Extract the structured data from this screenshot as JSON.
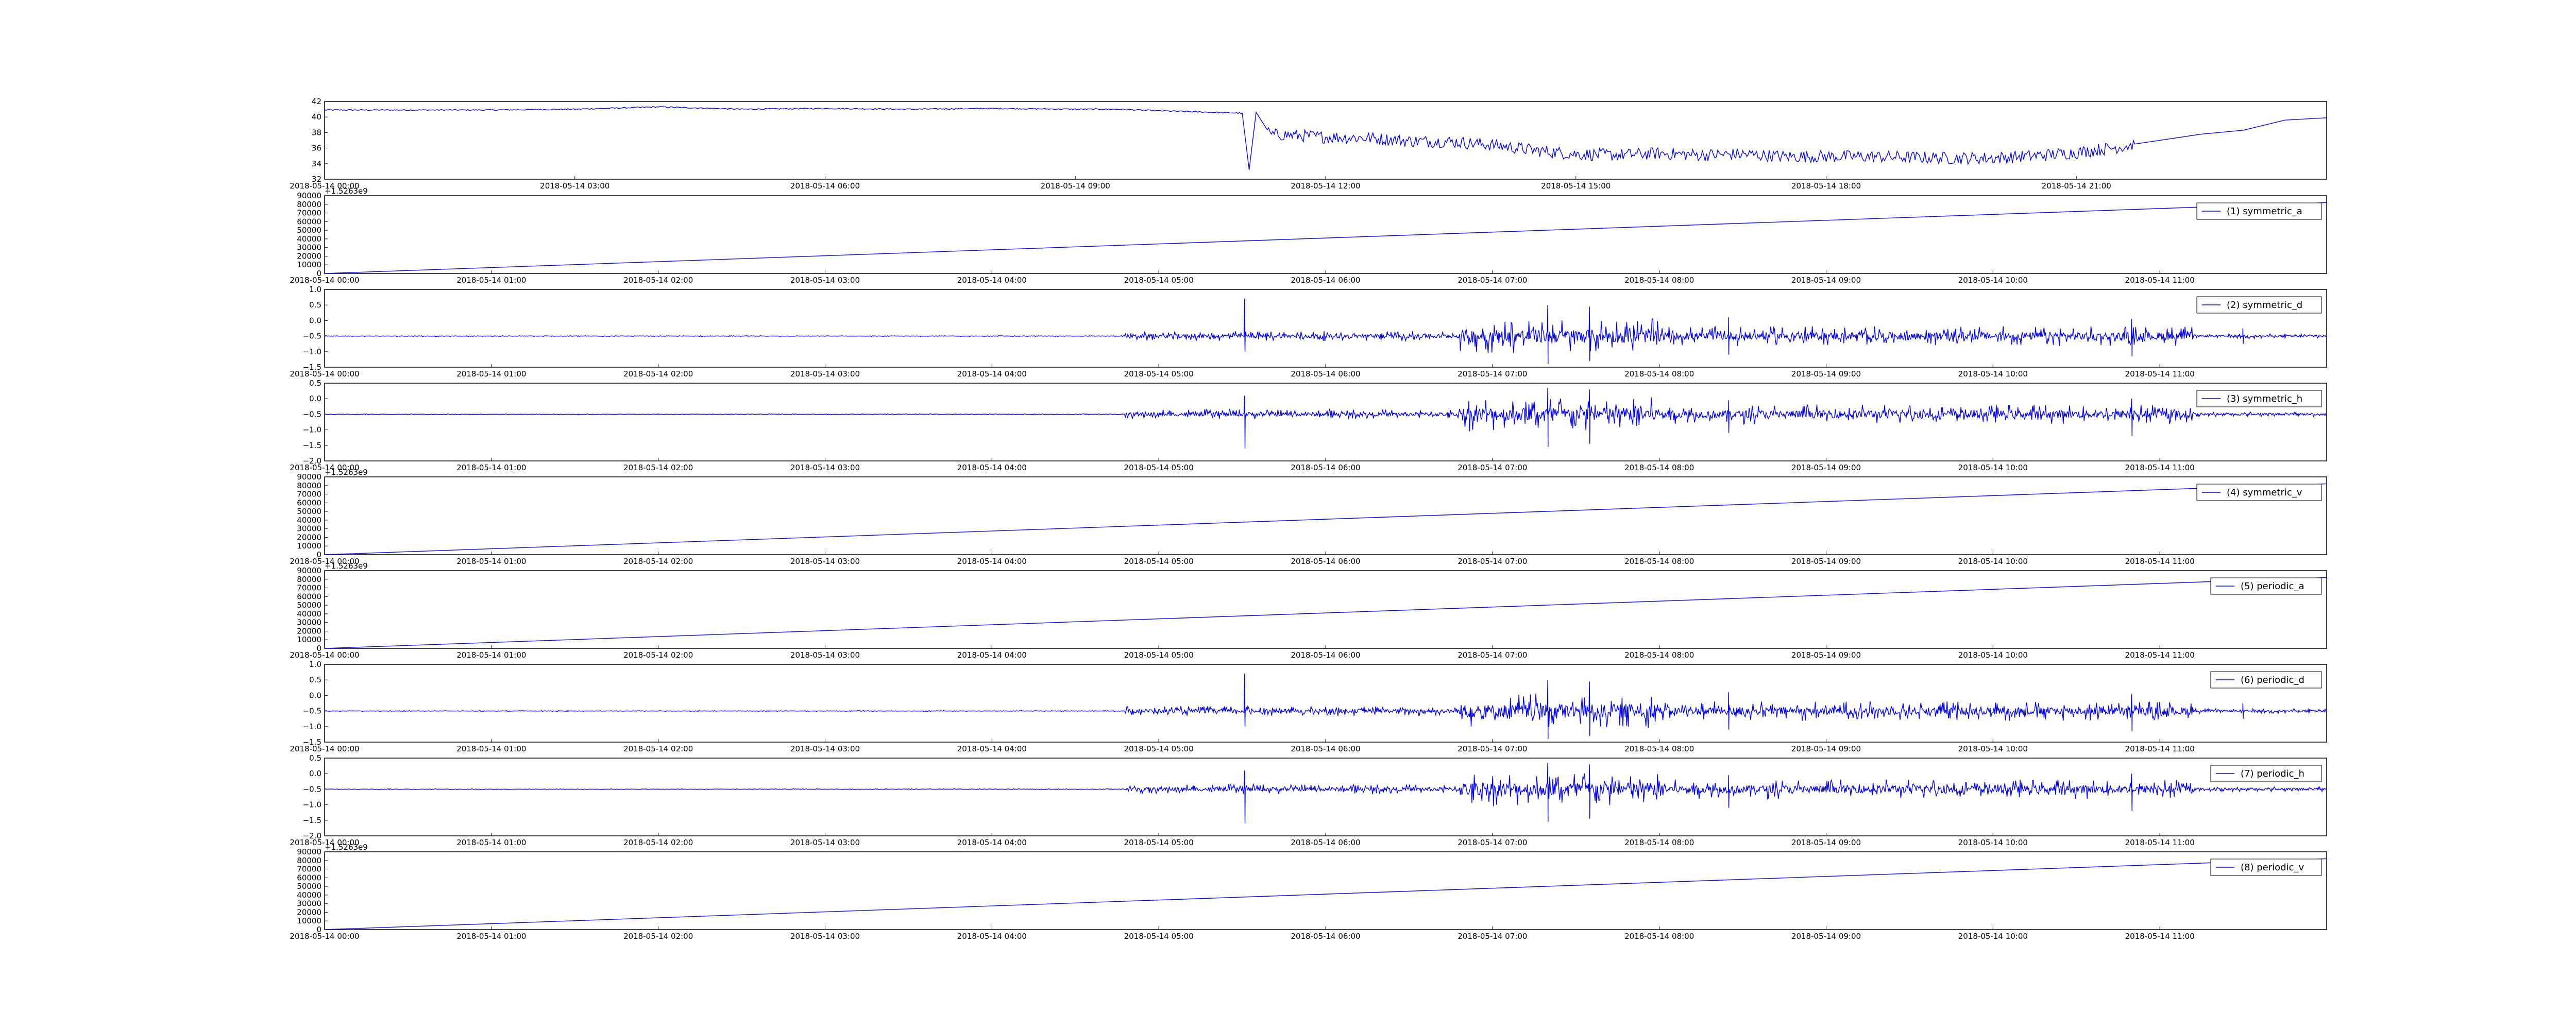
{
  "chart_data": [
    {
      "type": "line",
      "id": "top",
      "signal": "raw",
      "legend": null,
      "color": "#0000ff",
      "y_ticks": [
        "32",
        "34",
        "36",
        "38",
        "40",
        "42"
      ],
      "ylim": [
        32,
        42
      ],
      "y_offset_label": "",
      "x_axis": "day",
      "x_ticks": [
        "2018-05-14 00:00",
        "2018-05-14 03:00",
        "2018-05-14 06:00",
        "2018-05-14 09:00",
        "2018-05-14 12:00",
        "2018-05-14 15:00",
        "2018-05-14 18:00",
        "2018-05-14 21:00"
      ],
      "xlim": [
        "2018-05-14 00:00",
        "2018-05-15 00:00"
      ],
      "series": [
        {
          "x": [
            "00:00",
            "01:00",
            "02:00",
            "03:00",
            "04:00",
            "05:00",
            "06:00",
            "07:00",
            "08:00",
            "09:00",
            "09:30",
            "10:00",
            "10:40",
            "11:00",
            "11:05",
            "11:10",
            "11:20",
            "11:30",
            "12:00",
            "12:30",
            "13:00",
            "13:30",
            "14:00",
            "14:30",
            "15:00",
            "15:30",
            "16:00",
            "16:30",
            "17:00",
            "17:30",
            "18:00",
            "18:30",
            "19:00",
            "19:30",
            "20:00",
            "20:30",
            "21:00",
            "21:30",
            "22:00",
            "22:30",
            "23:00",
            "23:30",
            "24:00"
          ],
          "y": [
            40.9,
            40.9,
            40.9,
            41.0,
            41.3,
            41.0,
            41.1,
            41.0,
            41.1,
            41.0,
            41.0,
            40.8,
            40.6,
            40.5,
            33.2,
            40.6,
            37.8,
            37.8,
            37.5,
            37.4,
            37.0,
            36.9,
            36.5,
            35.8,
            35.3,
            35.2,
            35.4,
            35.2,
            35.3,
            35.0,
            35.0,
            35.0,
            34.9,
            34.8,
            34.8,
            35.1,
            35.5,
            36.2,
            37.0,
            37.8,
            38.3,
            39.6,
            39.9
          ]
        }
      ]
    },
    {
      "type": "line",
      "id": "p1",
      "signal": "ramp",
      "legend": "(1) symmetric_a",
      "color": "#0000ff",
      "y_ticks": [
        "0",
        "10000",
        "20000",
        "30000",
        "40000",
        "50000",
        "60000",
        "70000",
        "80000",
        "90000"
      ],
      "ylim": [
        0,
        90000
      ],
      "y_offset_label": "+1.5263e9",
      "x_axis": "half",
      "x_ticks": [
        "2018-05-14 00:00",
        "2018-05-14 01:00",
        "2018-05-14 02:00",
        "2018-05-14 03:00",
        "2018-05-14 04:00",
        "2018-05-14 05:00",
        "2018-05-14 06:00",
        "2018-05-14 07:00",
        "2018-05-14 08:00",
        "2018-05-14 09:00",
        "2018-05-14 10:00",
        "2018-05-14 11:00"
      ],
      "xlim": [
        "2018-05-14 00:00",
        "2018-05-14 12:00"
      ],
      "series": [
        {
          "x": [
            "00:00",
            "12:00"
          ],
          "y": [
            0,
            82000
          ]
        }
      ]
    },
    {
      "type": "line",
      "id": "p2",
      "signal": "noise-d",
      "legend": "(2) symmetric_d",
      "color": "#0000ff",
      "y_ticks": [
        "−1.5",
        "−1.0",
        "−0.5",
        "0.0",
        "0.5",
        "1.0"
      ],
      "ylim": [
        -1.5,
        1.0
      ],
      "y_offset_label": "",
      "x_axis": "half",
      "x_ticks": [
        "2018-05-14 00:00",
        "2018-05-14 01:00",
        "2018-05-14 02:00",
        "2018-05-14 03:00",
        "2018-05-14 04:00",
        "2018-05-14 05:00",
        "2018-05-14 06:00",
        "2018-05-14 07:00",
        "2018-05-14 08:00",
        "2018-05-14 09:00",
        "2018-05-14 10:00",
        "2018-05-14 11:00"
      ],
      "xlim": [
        "2018-05-14 00:00",
        "2018-05-14 12:00"
      ],
      "baseline": -0.5,
      "spikes": [
        {
          "x": "05:31",
          "max": 0.7,
          "min": -1.0
        },
        {
          "x": "07:20",
          "max": 0.5,
          "min": -1.4
        },
        {
          "x": "07:35",
          "max": 0.45,
          "min": -1.3
        },
        {
          "x": "08:25",
          "max": 0.1,
          "min": -1.1
        },
        {
          "x": "10:50",
          "max": 0.05,
          "min": -1.15
        },
        {
          "x": "11:30",
          "max": -0.25,
          "min": -0.75
        }
      ]
    },
    {
      "type": "line",
      "id": "p3",
      "signal": "noise-h",
      "legend": "(3) symmetric_h",
      "color": "#0000ff",
      "y_ticks": [
        "−2.0",
        "−1.5",
        "−1.0",
        "−0.5",
        "0.0",
        "0.5"
      ],
      "ylim": [
        -2.0,
        0.5
      ],
      "y_offset_label": "",
      "x_axis": "half",
      "x_ticks": [
        "2018-05-14 00:00",
        "2018-05-14 01:00",
        "2018-05-14 02:00",
        "2018-05-14 03:00",
        "2018-05-14 04:00",
        "2018-05-14 05:00",
        "2018-05-14 06:00",
        "2018-05-14 07:00",
        "2018-05-14 08:00",
        "2018-05-14 09:00",
        "2018-05-14 10:00",
        "2018-05-14 11:00"
      ],
      "xlim": [
        "2018-05-14 00:00",
        "2018-05-14 12:00"
      ],
      "baseline": -0.5,
      "spikes": [
        {
          "x": "05:31",
          "max": 0.1,
          "min": -1.6
        },
        {
          "x": "07:20",
          "max": 0.35,
          "min": -1.55
        },
        {
          "x": "07:35",
          "max": 0.3,
          "min": -1.45
        },
        {
          "x": "08:25",
          "max": -0.05,
          "min": -1.1
        },
        {
          "x": "10:50",
          "max": 0.0,
          "min": -1.2
        }
      ]
    },
    {
      "type": "line",
      "id": "p4",
      "signal": "ramp",
      "legend": "(4) symmetric_v",
      "color": "#0000ff",
      "y_ticks": [
        "0",
        "10000",
        "20000",
        "30000",
        "40000",
        "50000",
        "60000",
        "70000",
        "80000",
        "90000"
      ],
      "ylim": [
        0,
        90000
      ],
      "y_offset_label": "+1.5263e9",
      "x_axis": "half",
      "x_ticks": [
        "2018-05-14 00:00",
        "2018-05-14 01:00",
        "2018-05-14 02:00",
        "2018-05-14 03:00",
        "2018-05-14 04:00",
        "2018-05-14 05:00",
        "2018-05-14 06:00",
        "2018-05-14 07:00",
        "2018-05-14 08:00",
        "2018-05-14 09:00",
        "2018-05-14 10:00",
        "2018-05-14 11:00"
      ],
      "xlim": [
        "2018-05-14 00:00",
        "2018-05-14 12:00"
      ],
      "series": [
        {
          "x": [
            "00:00",
            "12:00"
          ],
          "y": [
            0,
            82000
          ]
        }
      ]
    },
    {
      "type": "line",
      "id": "p5",
      "signal": "ramp",
      "legend": "(5) periodic_a",
      "color": "#0000ff",
      "y_ticks": [
        "0",
        "10000",
        "20000",
        "30000",
        "40000",
        "50000",
        "60000",
        "70000",
        "80000",
        "90000"
      ],
      "ylim": [
        0,
        90000
      ],
      "y_offset_label": "+1.5263e9",
      "x_axis": "half",
      "x_ticks": [
        "2018-05-14 00:00",
        "2018-05-14 01:00",
        "2018-05-14 02:00",
        "2018-05-14 03:00",
        "2018-05-14 04:00",
        "2018-05-14 05:00",
        "2018-05-14 06:00",
        "2018-05-14 07:00",
        "2018-05-14 08:00",
        "2018-05-14 09:00",
        "2018-05-14 10:00",
        "2018-05-14 11:00"
      ],
      "xlim": [
        "2018-05-14 00:00",
        "2018-05-14 12:00"
      ],
      "series": [
        {
          "x": [
            "00:00",
            "12:00"
          ],
          "y": [
            0,
            82000
          ]
        }
      ]
    },
    {
      "type": "line",
      "id": "p6",
      "signal": "noise-d",
      "legend": "(6) periodic_d",
      "color": "#0000ff",
      "y_ticks": [
        "−1.5",
        "−1.0",
        "−0.5",
        "0.0",
        "0.5",
        "1.0"
      ],
      "ylim": [
        -1.5,
        1.0
      ],
      "y_offset_label": "",
      "x_axis": "half",
      "x_ticks": [
        "2018-05-14 00:00",
        "2018-05-14 01:00",
        "2018-05-14 02:00",
        "2018-05-14 03:00",
        "2018-05-14 04:00",
        "2018-05-14 05:00",
        "2018-05-14 06:00",
        "2018-05-14 07:00",
        "2018-05-14 08:00",
        "2018-05-14 09:00",
        "2018-05-14 10:00",
        "2018-05-14 11:00"
      ],
      "xlim": [
        "2018-05-14 00:00",
        "2018-05-14 12:00"
      ],
      "baseline": -0.5,
      "spikes": [
        {
          "x": "05:31",
          "max": 0.7,
          "min": -1.0
        },
        {
          "x": "07:20",
          "max": 0.5,
          "min": -1.4
        },
        {
          "x": "07:35",
          "max": 0.45,
          "min": -1.3
        },
        {
          "x": "08:25",
          "max": 0.1,
          "min": -1.1
        },
        {
          "x": "10:50",
          "max": 0.05,
          "min": -1.15
        },
        {
          "x": "11:30",
          "max": -0.25,
          "min": -0.75
        }
      ]
    },
    {
      "type": "line",
      "id": "p7",
      "signal": "noise-h",
      "legend": "(7) periodic_h",
      "color": "#0000ff",
      "y_ticks": [
        "−2.0",
        "−1.5",
        "−1.0",
        "−0.5",
        "0.0",
        "0.5"
      ],
      "ylim": [
        -2.0,
        0.5
      ],
      "y_offset_label": "",
      "x_axis": "half",
      "x_ticks": [
        "2018-05-14 00:00",
        "2018-05-14 01:00",
        "2018-05-14 02:00",
        "2018-05-14 03:00",
        "2018-05-14 04:00",
        "2018-05-14 05:00",
        "2018-05-14 06:00",
        "2018-05-14 07:00",
        "2018-05-14 08:00",
        "2018-05-14 09:00",
        "2018-05-14 10:00",
        "2018-05-14 11:00"
      ],
      "xlim": [
        "2018-05-14 00:00",
        "2018-05-14 12:00"
      ],
      "baseline": -0.5,
      "spikes": [
        {
          "x": "05:31",
          "max": 0.1,
          "min": -1.6
        },
        {
          "x": "07:20",
          "max": 0.35,
          "min": -1.55
        },
        {
          "x": "07:35",
          "max": 0.3,
          "min": -1.45
        },
        {
          "x": "08:25",
          "max": -0.05,
          "min": -1.1
        },
        {
          "x": "10:50",
          "max": 0.0,
          "min": -1.2
        }
      ]
    },
    {
      "type": "line",
      "id": "p8",
      "signal": "ramp",
      "legend": "(8) periodic_v",
      "color": "#0000ff",
      "y_ticks": [
        "0",
        "10000",
        "20000",
        "30000",
        "40000",
        "50000",
        "60000",
        "70000",
        "80000",
        "90000"
      ],
      "ylim": [
        0,
        90000
      ],
      "y_offset_label": "+1.5263e9",
      "x_axis": "half",
      "x_ticks": [
        "2018-05-14 00:00",
        "2018-05-14 01:00",
        "2018-05-14 02:00",
        "2018-05-14 03:00",
        "2018-05-14 04:00",
        "2018-05-14 05:00",
        "2018-05-14 06:00",
        "2018-05-14 07:00",
        "2018-05-14 08:00",
        "2018-05-14 09:00",
        "2018-05-14 10:00",
        "2018-05-14 11:00"
      ],
      "xlim": [
        "2018-05-14 00:00",
        "2018-05-14 12:00"
      ],
      "series": [
        {
          "x": [
            "00:00",
            "12:00"
          ],
          "y": [
            0,
            82000
          ]
        }
      ]
    }
  ]
}
